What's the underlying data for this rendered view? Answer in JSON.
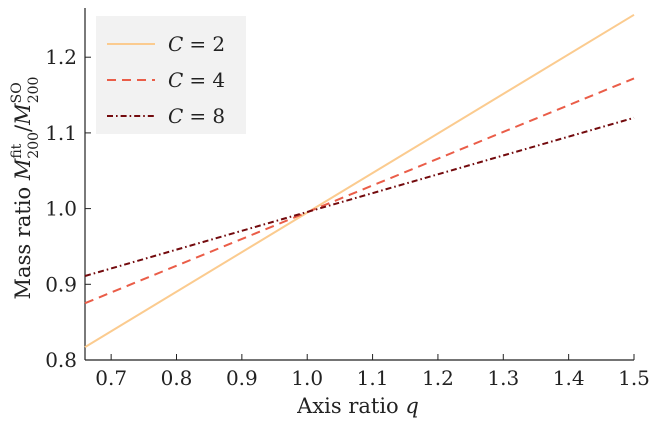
{
  "chart_data": {
    "type": "line",
    "xlabel": "Axis ratio",
    "xlabel_symbol": "q",
    "ylabel": "Mass ratio",
    "ylabel_symbol_num": "M",
    "ylabel_num_sub": "200",
    "ylabel_num_sup": "fit",
    "ylabel_symbol_den": "M",
    "ylabel_den_sub": "200",
    "ylabel_den_sup": "SO",
    "xlim": [
      0.66,
      1.5
    ],
    "ylim": [
      0.8,
      1.265
    ],
    "x_ticks": [
      "0.7",
      "0.8",
      "0.9",
      "1.0",
      "1.1",
      "1.2",
      "1.3",
      "1.4",
      "1.5"
    ],
    "y_ticks": [
      "0.8",
      "0.9",
      "1.0",
      "1.1",
      "1.2"
    ],
    "grid": false,
    "legend_position": "top-left",
    "series": [
      {
        "name_symbol": "C",
        "name_eq": "= 2",
        "color": "#fbcb8f",
        "dash": "solid",
        "x": [
          0.66,
          1.5
        ],
        "y": [
          0.817,
          1.256
        ]
      },
      {
        "name_symbol": "C",
        "name_eq": "= 4",
        "color": "#ea5d48",
        "dash": "dashed",
        "x": [
          0.66,
          1.5
        ],
        "y": [
          0.875,
          1.172
        ]
      },
      {
        "name_symbol": "C",
        "name_eq": "= 8",
        "color": "#730a0d",
        "dash": "dashdot",
        "x": [
          0.66,
          1.5
        ],
        "y": [
          0.911,
          1.12
        ]
      }
    ]
  }
}
